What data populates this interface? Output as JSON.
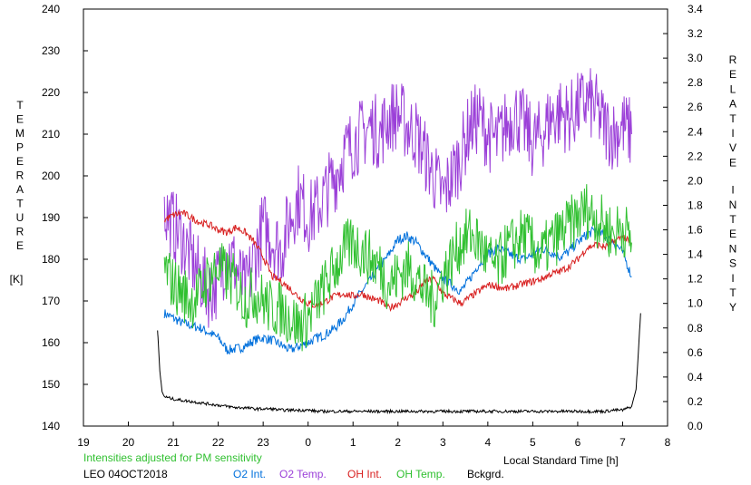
{
  "chart_data": {
    "type": "line",
    "title": "",
    "left_axis": {
      "label_letters": [
        "T",
        "E",
        "M",
        "P",
        "E",
        "R",
        "A",
        "T",
        "U",
        "R",
        "E"
      ],
      "unit": "[K]",
      "ylim": [
        140,
        240
      ],
      "ticks": [
        140,
        150,
        160,
        170,
        180,
        190,
        200,
        210,
        220,
        230,
        240
      ]
    },
    "right_axis": {
      "label_words": [
        [
          "R",
          "E",
          "L",
          "A",
          "T",
          "I",
          "V",
          "E"
        ],
        [
          "I",
          "N",
          "T",
          "E",
          "N",
          "S",
          "I",
          "T",
          "Y"
        ]
      ],
      "ylim": [
        0.0,
        3.4
      ],
      "ticks": [
        "0.0",
        "0.2",
        "0.4",
        "0.6",
        "0.8",
        "1.0",
        "1.2",
        "1.4",
        "1.6",
        "1.8",
        "2.0",
        "2.2",
        "2.4",
        "2.6",
        "2.8",
        "3.0",
        "3.2",
        "3.4"
      ]
    },
    "x_axis": {
      "label": "Local Standard Time [h]",
      "xlim": [
        19,
        32
      ],
      "ticks": [
        "19",
        "20",
        "21",
        "22",
        "23",
        "0",
        "1",
        "2",
        "3",
        "4",
        "5",
        "6",
        "7",
        "8"
      ]
    },
    "grid": false,
    "series": [
      {
        "name": "O2 Int.",
        "color": "#0070dc",
        "axis": "right",
        "x": [
          20.8,
          21.0,
          21.2,
          21.4,
          21.6,
          21.8,
          22.0,
          22.2,
          22.4,
          22.6,
          22.8,
          23.0,
          23.2,
          23.4,
          23.6,
          23.8,
          24.0,
          24.2,
          24.4,
          24.6,
          24.8,
          25.0,
          25.2,
          25.4,
          25.6,
          25.8,
          26.0,
          26.2,
          26.4,
          26.6,
          26.8,
          27.0,
          27.2,
          27.4,
          27.6,
          27.8,
          28.0,
          28.2,
          28.4,
          28.6,
          28.8,
          29.0,
          29.2,
          29.4,
          29.6,
          29.8,
          30.0,
          30.2,
          30.4,
          30.6,
          30.8,
          31.0,
          31.2
        ],
        "y": [
          0.92,
          0.88,
          0.84,
          0.82,
          0.8,
          0.76,
          0.72,
          0.62,
          0.63,
          0.65,
          0.7,
          0.72,
          0.7,
          0.66,
          0.62,
          0.65,
          0.68,
          0.72,
          0.75,
          0.8,
          0.88,
          1.0,
          1.1,
          1.2,
          1.3,
          1.4,
          1.52,
          1.55,
          1.5,
          1.4,
          1.3,
          1.2,
          1.15,
          1.1,
          1.2,
          1.32,
          1.4,
          1.45,
          1.42,
          1.38,
          1.36,
          1.4,
          1.45,
          1.42,
          1.38,
          1.42,
          1.5,
          1.56,
          1.6,
          1.55,
          1.5,
          1.42,
          1.22
        ]
      },
      {
        "name": "O2 Temp.",
        "color": "#9b40d8",
        "axis": "left",
        "x": [
          20.8,
          21.0,
          21.2,
          21.4,
          21.6,
          21.8,
          22.0,
          22.2,
          22.4,
          22.6,
          22.8,
          23.0,
          23.2,
          23.4,
          23.6,
          23.8,
          24.0,
          24.2,
          24.4,
          24.6,
          24.8,
          25.0,
          25.2,
          25.4,
          25.6,
          25.8,
          26.0,
          26.2,
          26.4,
          26.6,
          26.8,
          27.0,
          27.2,
          27.4,
          27.6,
          27.8,
          28.0,
          28.2,
          28.4,
          28.6,
          28.8,
          29.0,
          29.2,
          29.4,
          29.6,
          29.8,
          30.0,
          30.2,
          30.4,
          30.6,
          30.8,
          31.0,
          31.2
        ],
        "y": [
          192,
          188,
          185,
          180,
          176,
          172,
          175,
          182,
          178,
          172,
          180,
          188,
          185,
          182,
          190,
          195,
          190,
          192,
          196,
          200,
          205,
          208,
          210,
          212,
          210,
          214,
          215,
          212,
          210,
          205,
          200,
          195,
          200,
          205,
          212,
          214,
          210,
          208,
          212,
          215,
          212,
          208,
          210,
          214,
          215,
          214,
          216,
          218,
          216,
          212,
          210,
          212,
          210
        ]
      },
      {
        "name": "OH Int.",
        "color": "#d82020",
        "axis": "right",
        "x": [
          20.8,
          21.0,
          21.2,
          21.4,
          21.6,
          21.8,
          22.0,
          22.2,
          22.4,
          22.6,
          22.8,
          23.0,
          23.2,
          23.4,
          23.6,
          23.8,
          24.0,
          24.2,
          24.4,
          24.6,
          24.8,
          25.0,
          25.2,
          25.4,
          25.6,
          25.8,
          26.0,
          26.2,
          26.4,
          26.6,
          26.8,
          27.0,
          27.2,
          27.4,
          27.6,
          27.8,
          28.0,
          28.2,
          28.4,
          28.6,
          28.8,
          29.0,
          29.2,
          29.4,
          29.6,
          29.8,
          30.0,
          30.2,
          30.4,
          30.6,
          30.8,
          31.0,
          31.2
        ],
        "y": [
          1.68,
          1.72,
          1.74,
          1.7,
          1.66,
          1.64,
          1.6,
          1.58,
          1.62,
          1.58,
          1.5,
          1.38,
          1.22,
          1.18,
          1.12,
          1.05,
          1.0,
          0.98,
          1.02,
          1.06,
          1.08,
          1.06,
          1.08,
          1.04,
          1.02,
          0.96,
          1.0,
          1.05,
          1.08,
          1.18,
          1.2,
          1.08,
          1.04,
          1.0,
          1.05,
          1.1,
          1.15,
          1.14,
          1.12,
          1.14,
          1.16,
          1.18,
          1.2,
          1.24,
          1.26,
          1.3,
          1.36,
          1.45,
          1.48,
          1.46,
          1.5,
          1.55,
          1.48
        ]
      },
      {
        "name": "OH Temp.",
        "color": "#30c030",
        "axis": "left",
        "x": [
          20.8,
          21.0,
          21.2,
          21.4,
          21.6,
          21.8,
          22.0,
          22.2,
          22.4,
          22.6,
          22.8,
          23.0,
          23.2,
          23.4,
          23.6,
          23.8,
          24.0,
          24.2,
          24.4,
          24.6,
          24.8,
          25.0,
          25.2,
          25.4,
          25.6,
          25.8,
          26.0,
          26.2,
          26.4,
          26.6,
          26.8,
          27.0,
          27.2,
          27.4,
          27.6,
          27.8,
          28.0,
          28.2,
          28.4,
          28.6,
          28.8,
          29.0,
          29.2,
          29.4,
          29.6,
          29.8,
          30.0,
          30.2,
          30.4,
          30.6,
          30.8,
          31.0,
          31.2
        ],
        "y": [
          178,
          174,
          172,
          170,
          172,
          176,
          178,
          176,
          174,
          170,
          172,
          170,
          168,
          168,
          166,
          164,
          166,
          170,
          174,
          178,
          182,
          184,
          182,
          180,
          178,
          174,
          176,
          178,
          176,
          172,
          170,
          176,
          180,
          184,
          186,
          184,
          180,
          178,
          182,
          184,
          186,
          183,
          181,
          184,
          186,
          188,
          190,
          192,
          190,
          188,
          186,
          188,
          184
        ]
      },
      {
        "name": "Bckgrd.",
        "color": "#000000",
        "axis": "right",
        "x": [
          20.65,
          20.7,
          20.75,
          20.8,
          21.0,
          21.2,
          21.4,
          21.6,
          21.8,
          22.0,
          22.2,
          22.4,
          22.6,
          22.8,
          23.0,
          23.2,
          23.4,
          23.6,
          23.8,
          24.0,
          24.2,
          24.4,
          24.6,
          24.8,
          25.0,
          25.2,
          25.4,
          25.6,
          25.8,
          26.0,
          26.2,
          26.4,
          26.6,
          26.8,
          27.0,
          27.2,
          27.4,
          27.6,
          27.8,
          28.0,
          28.2,
          28.4,
          28.6,
          28.8,
          29.0,
          29.2,
          29.4,
          29.6,
          29.8,
          30.0,
          30.2,
          30.4,
          30.6,
          30.8,
          31.0,
          31.2,
          31.3,
          31.35,
          31.4
        ],
        "y": [
          0.78,
          0.45,
          0.28,
          0.24,
          0.22,
          0.21,
          0.2,
          0.19,
          0.18,
          0.17,
          0.16,
          0.15,
          0.15,
          0.14,
          0.14,
          0.14,
          0.13,
          0.13,
          0.13,
          0.13,
          0.12,
          0.12,
          0.12,
          0.12,
          0.12,
          0.12,
          0.12,
          0.12,
          0.12,
          0.12,
          0.12,
          0.12,
          0.12,
          0.12,
          0.12,
          0.12,
          0.12,
          0.12,
          0.12,
          0.12,
          0.12,
          0.12,
          0.12,
          0.12,
          0.12,
          0.12,
          0.12,
          0.12,
          0.12,
          0.12,
          0.12,
          0.12,
          0.12,
          0.13,
          0.13,
          0.16,
          0.3,
          0.6,
          0.92
        ]
      }
    ],
    "annotation": "Intensities adjusted for PM sensitivity",
    "annotation_color": "#30c030",
    "station": "LEO 04OCT2018",
    "legend": [
      {
        "label": "O2 Int.",
        "color": "#0070dc"
      },
      {
        "label": "O2 Temp.",
        "color": "#9b40d8"
      },
      {
        "label": "OH Int.",
        "color": "#d82020"
      },
      {
        "label": "OH Temp.",
        "color": "#30c030"
      },
      {
        "label": "Bckgrd.",
        "color": "#000000"
      }
    ]
  }
}
